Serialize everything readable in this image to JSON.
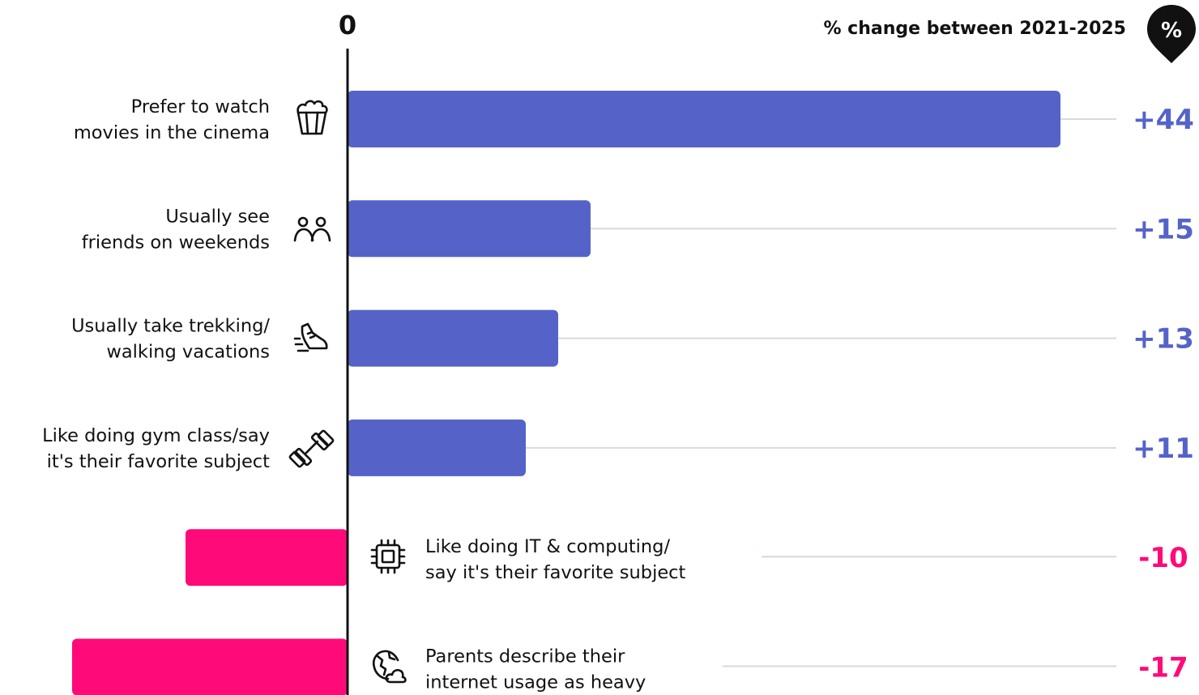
{
  "chart_data": {
    "type": "bar",
    "orientation": "horizontal",
    "zero_label": "0",
    "header": "% change between 2021-2025",
    "badge": "%",
    "categories": [
      {
        "lines": [
          "Prefer to watch",
          "movies in the cinema"
        ],
        "icon": "popcorn-icon",
        "value": 44,
        "label": "+44"
      },
      {
        "lines": [
          "Usually see",
          "friends on weekends"
        ],
        "icon": "friends-icon",
        "value": 15,
        "label": "+15"
      },
      {
        "lines": [
          "Usually take trekking/",
          "walking vacations"
        ],
        "icon": "sneaker-icon",
        "value": 13,
        "label": "+13"
      },
      {
        "lines": [
          "Like doing gym class/say",
          "it's their favorite subject"
        ],
        "icon": "dumbbell-icon",
        "value": 11,
        "label": "+11"
      },
      {
        "lines": [
          "Like doing IT & computing/",
          "say it's their favorite subject"
        ],
        "icon": "chip-icon",
        "value": -10,
        "label": "-10"
      },
      {
        "lines": [
          "Parents describe their",
          "internet usage as heavy"
        ],
        "icon": "globe-icon",
        "value": -17,
        "label": "-17"
      }
    ],
    "colors": {
      "positive": "#5563c8",
      "negative": "#ff0a78",
      "axis": "#111111",
      "guide": "#d4dae4"
    }
  }
}
